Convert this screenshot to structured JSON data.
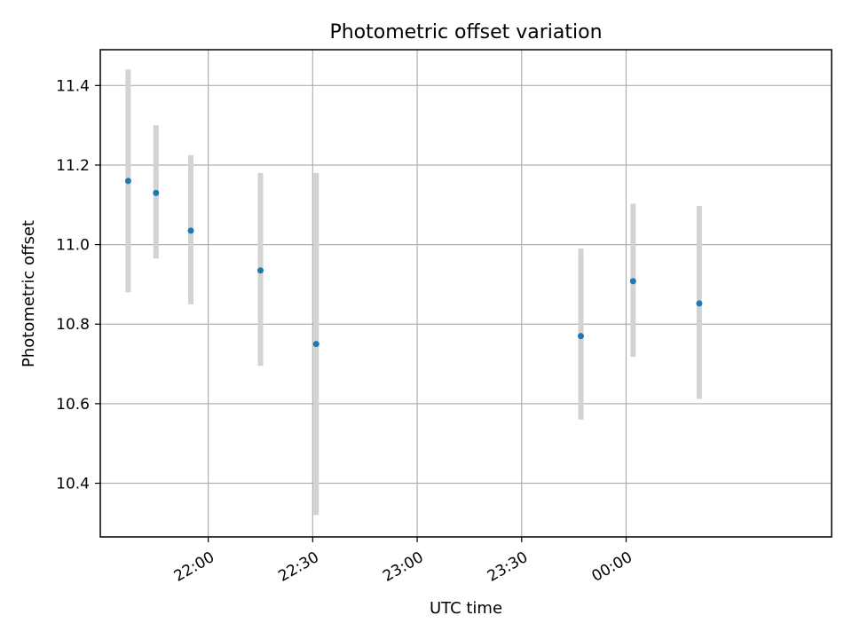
{
  "chart_data": {
    "type": "scatter",
    "title": "Photometric offset variation",
    "xlabel": "UTC time",
    "ylabel": "Photometric offset",
    "x_ticks": [
      "22:00",
      "22:30",
      "23:00",
      "23:30",
      "00:00"
    ],
    "y_ticks": [
      "10.4",
      "10.6",
      "10.8",
      "11.0",
      "11.2",
      "11.4"
    ],
    "xlim": [
      "21:29",
      "00:59"
    ],
    "ylim": [
      10.265,
      11.49
    ],
    "grid": true,
    "marker_color": "#1f77b4",
    "errorbar_color": "#d3d3d3",
    "series": [
      {
        "points": [
          {
            "x": "21:37",
            "y": 11.16,
            "err_low": 0.28,
            "err_high": 0.28
          },
          {
            "x": "21:45",
            "y": 11.13,
            "err_low": 0.165,
            "err_high": 0.17
          },
          {
            "x": "21:55",
            "y": 11.035,
            "err_low": 0.185,
            "err_high": 0.19
          },
          {
            "x": "22:15",
            "y": 10.935,
            "err_low": 0.24,
            "err_high": 0.245
          },
          {
            "x": "22:31",
            "y": 10.75,
            "err_low": 0.43,
            "err_high": 0.43
          },
          {
            "x": "23:47",
            "y": 10.77,
            "err_low": 0.21,
            "err_high": 0.22
          },
          {
            "x": "00:02",
            "y": 10.908,
            "err_low": 0.19,
            "err_high": 0.195
          },
          {
            "x": "00:21",
            "y": 10.852,
            "err_low": 0.24,
            "err_high": 0.245
          }
        ]
      }
    ]
  }
}
